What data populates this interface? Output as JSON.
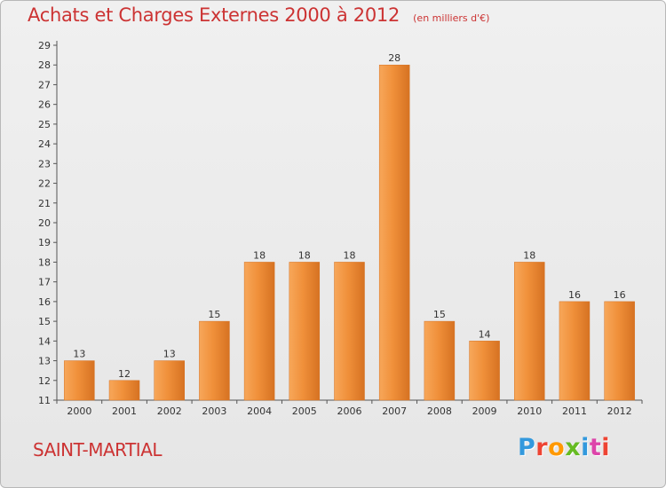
{
  "header": {
    "title": "Achats et Charges Externes 2000 à 2012",
    "subtitle": "(en milliers d'€)"
  },
  "footer": {
    "place": "SAINT-MARTIAL",
    "brand": "Proxiti",
    "brand_colors": [
      "#3399dd",
      "#ee4433",
      "#ff9900",
      "#66bb22",
      "#3399dd",
      "#dd44aa",
      "#ee4433"
    ]
  },
  "colors": {
    "bar": "#f0903a",
    "bar_light": "#f7a75a",
    "bar_dark": "#d67222",
    "axis": "#555555",
    "title": "#cc3333"
  },
  "chart_data": {
    "type": "bar",
    "title": "Achats et Charges Externes 2000 à 2012",
    "subtitle": "(en milliers d'€)",
    "xlabel": "",
    "ylabel": "",
    "categories": [
      "2000",
      "2001",
      "2002",
      "2003",
      "2004",
      "2005",
      "2006",
      "2007",
      "2008",
      "2009",
      "2010",
      "2011",
      "2012"
    ],
    "values": [
      13,
      12,
      13,
      15,
      18,
      18,
      18,
      28,
      15,
      14,
      18,
      16,
      16
    ],
    "ylim": [
      11,
      29
    ],
    "yticks": [
      11,
      12,
      13,
      14,
      15,
      16,
      17,
      18,
      19,
      20,
      21,
      22,
      23,
      24,
      25,
      26,
      27,
      28,
      29
    ],
    "grid": false,
    "legend": "none"
  }
}
